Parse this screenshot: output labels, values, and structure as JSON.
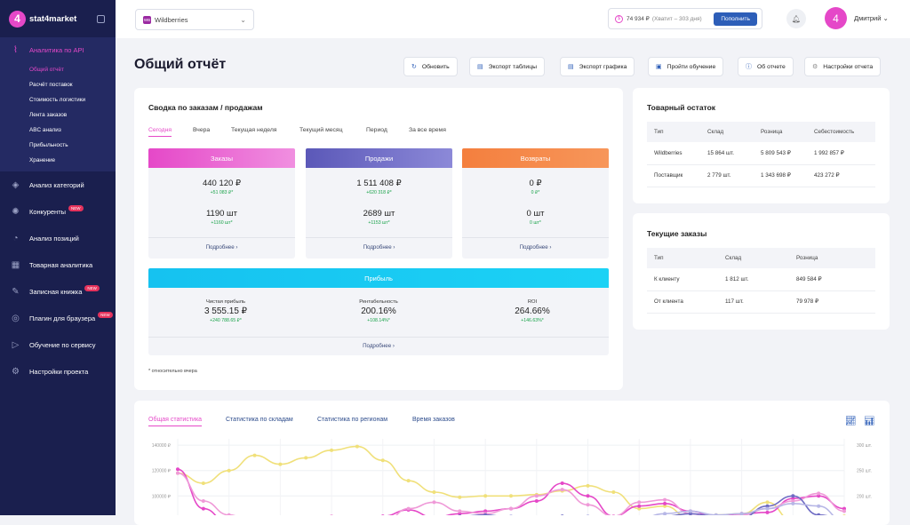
{
  "sidebar": {
    "logo_letter": "4",
    "logo_text": "stat4market",
    "active_section": "Аналитика по API",
    "sub_items": [
      "Общий отчёт",
      "Расчёт поставок",
      "Стоимость логистики",
      "Лента заказов",
      "ABC анализ",
      "Прибыльность",
      "Хранение"
    ],
    "items": [
      {
        "label": "Анализ категорий",
        "icon": "layers-icon",
        "glyph": "◈",
        "badge": ""
      },
      {
        "label": "Конкуренты",
        "icon": "target-icon",
        "glyph": "✺",
        "badge": "NEW"
      },
      {
        "label": "Анализ позиций",
        "icon": "position-icon",
        "glyph": "◔",
        "badge": ""
      },
      {
        "label": "Товарная аналитика",
        "icon": "grid-icon",
        "glyph": "▦",
        "badge": ""
      },
      {
        "label": "Записная книжка",
        "icon": "notebook-icon",
        "glyph": "✎",
        "badge": "NEW"
      },
      {
        "label": "Плагин для браузера",
        "icon": "chrome-icon",
        "glyph": "◎",
        "badge": "NEW"
      },
      {
        "label": "Обучение по сервису",
        "icon": "play-icon",
        "glyph": "▷",
        "badge": ""
      },
      {
        "label": "Настройки проекта",
        "icon": "gear-icon",
        "glyph": "⚙",
        "badge": ""
      }
    ]
  },
  "topbar": {
    "shop_badge": "WB",
    "shop_name": "Wildberries",
    "balance": "74 934 ₽",
    "balance_hint": "(Хватит – 303 дня)",
    "topup_label": "Пополнить",
    "user_initial": "4",
    "user_name": "Дмитрий"
  },
  "header": {
    "title": "Общий отчёт",
    "buttons": [
      "Обновить",
      "Экспорт таблицы",
      "Экспорт графика",
      "Пройти обучение",
      "Об отчете",
      "Настройки отчета"
    ]
  },
  "summary": {
    "title": "Сводка по заказам / продажам",
    "periods": [
      "Сегодня",
      "Вчера",
      "Текущая неделя",
      "Текущий месяц",
      "Период",
      "За все время"
    ],
    "active_period": "Сегодня",
    "more_label": "Подробнее ›",
    "blocks": [
      {
        "title": "Заказы",
        "color": "#e548c8",
        "sum": "440 120 ₽",
        "sum_delta": "+51 083 ₽*",
        "qty": "1190 шт",
        "qty_delta": "+1160 шт*"
      },
      {
        "title": "Продажи",
        "color": "#6f6cc4",
        "sum": "1 511 408 ₽",
        "sum_delta": "+620 318 ₽*",
        "qty": "2689 шт",
        "qty_delta": "+1153 шт*"
      },
      {
        "title": "Возвраты",
        "color": "#f4874a",
        "sum": "0 ₽",
        "sum_delta": "0 ₽*",
        "qty": "0 шт",
        "qty_delta": "0 шт*"
      }
    ],
    "profit": {
      "title": "Прибыль",
      "items": [
        {
          "label": "Чистая прибыль",
          "value": "3 555.15 ₽",
          "delta": "+240 788.65 ₽*"
        },
        {
          "label": "Рентабельность",
          "value": "200.16%",
          "delta": "+108.14%*"
        },
        {
          "label": "ROI",
          "value": "264.66%",
          "delta": "+146.63%*"
        }
      ]
    },
    "footnote": "* относительно вчера"
  },
  "stock": {
    "title": "Товарный остаток",
    "headers": [
      "Тип",
      "Склад",
      "Розница",
      "Себестоимость"
    ],
    "rows": [
      [
        "Wildberries",
        "15 864 шт.",
        "5 809 543 ₽",
        "1 992 857 ₽"
      ],
      [
        "Поставщик",
        "2 779 шт.",
        "1 343 698 ₽",
        "423 272 ₽"
      ]
    ]
  },
  "orders": {
    "title": "Текущие заказы",
    "headers": [
      "Тип",
      "Склад",
      "Розница"
    ],
    "rows": [
      [
        "К клиенту",
        "1 812 шт.",
        "849 584 ₽"
      ],
      [
        "От клиента",
        "117 шт.",
        "79 978 ₽"
      ]
    ]
  },
  "stats": {
    "tabs": [
      "Общая статистика",
      "Статистика по складам",
      "Статистика по регионам",
      "Время заказов"
    ],
    "active_tab": "Общая статистика",
    "view_icons": [
      "line-chart-icon",
      "bar-chart-icon"
    ]
  },
  "chart_data": {
    "type": "line",
    "y_left_ticks": [
      "140000 ₽",
      "120000 ₽",
      "100000 ₽",
      "80000 ₽"
    ],
    "y_right_ticks": [
      "300 шт.",
      "250 шт.",
      "200 шт.",
      "150 шт."
    ],
    "ylim": [
      75000,
      145000
    ],
    "x": [
      0,
      1,
      2,
      3,
      4,
      5,
      6,
      7,
      8,
      9,
      10,
      11,
      12,
      13,
      14,
      15,
      16,
      17,
      18,
      19,
      20,
      21,
      22,
      23,
      24,
      25,
      26
    ],
    "series": [
      {
        "color": "#f0e07a",
        "values": [
          118000,
          110000,
          120000,
          132000,
          125000,
          130000,
          136000,
          139000,
          128000,
          112000,
          103000,
          99000,
          100000,
          100000,
          101000,
          104000,
          108000,
          103000,
          90000,
          92000,
          82000,
          85000,
          86000,
          95000,
          80000,
          78000,
          84000
        ]
      },
      {
        "color": "#e548c8",
        "values": [
          121000,
          90000,
          78000,
          80000,
          79000,
          78000,
          80000,
          82000,
          84000,
          89000,
          83000,
          86000,
          88000,
          90000,
          96000,
          110000,
          100000,
          84000,
          92000,
          94000,
          88000,
          83000,
          86000,
          87000,
          98000,
          100000,
          90000
        ]
      },
      {
        "color": "#ef9ad8",
        "values": [
          118000,
          96000,
          85000,
          78000,
          80000,
          82000,
          84000,
          80000,
          78000,
          90000,
          95000,
          88000,
          86000,
          90000,
          100000,
          105000,
          93000,
          84000,
          95000,
          97000,
          86000,
          82000,
          85000,
          90000,
          96000,
          102000,
          88000
        ]
      },
      {
        "color": "#6f6cc4",
        "values": [
          80000,
          79000,
          78000,
          79000,
          80000,
          82000,
          81000,
          80000,
          79000,
          80000,
          82000,
          84000,
          85000,
          83000,
          82000,
          84000,
          82000,
          81000,
          80000,
          84000,
          86000,
          84000,
          83000,
          92000,
          100000,
          85000,
          82000
        ]
      },
      {
        "color": "#b7b7e6",
        "values": [
          82000,
          80000,
          79000,
          80000,
          81000,
          80000,
          79000,
          80000,
          81000,
          83000,
          80000,
          82000,
          83000,
          84000,
          83000,
          82000,
          84000,
          83000,
          82000,
          86000,
          88000,
          85000,
          86000,
          90000,
          94000,
          92000,
          80000
        ]
      }
    ]
  }
}
